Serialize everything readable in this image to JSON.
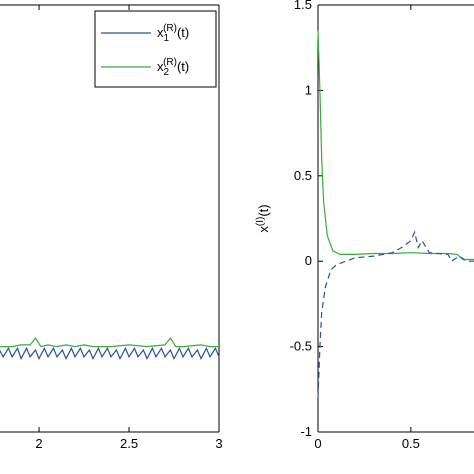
{
  "chart_data": [
    {
      "type": "line",
      "xlim": [
        1.783,
        3
      ],
      "ylim": [
        -1,
        1.5
      ],
      "xticks": [
        2,
        2.5,
        3
      ],
      "legend": "upper right",
      "series": [
        {
          "name": {
            "base": "x",
            "sub": "1",
            "sup": "(R)",
            "tail": "(t)"
          },
          "color": "#2b4fa0",
          "style": "solid",
          "x": [
            1.78,
            1.8,
            1.83,
            1.85,
            1.88,
            1.9,
            1.93,
            1.95,
            1.98,
            2.0,
            2.03,
            2.05,
            2.08,
            2.1,
            2.13,
            2.15,
            2.18,
            2.2,
            2.23,
            2.25,
            2.28,
            2.3,
            2.33,
            2.35,
            2.38,
            2.4,
            2.43,
            2.45,
            2.48,
            2.5,
            2.53,
            2.55,
            2.58,
            2.6,
            2.63,
            2.65,
            2.68,
            2.7,
            2.73,
            2.75,
            2.78,
            2.8,
            2.83,
            2.85,
            2.88,
            2.9,
            2.93,
            2.95,
            2.98,
            3.0
          ],
          "values": [
            -0.52,
            -0.56,
            -0.51,
            -0.56,
            -0.51,
            -0.57,
            -0.51,
            -0.56,
            -0.52,
            -0.57,
            -0.51,
            -0.56,
            -0.51,
            -0.56,
            -0.52,
            -0.57,
            -0.51,
            -0.56,
            -0.51,
            -0.56,
            -0.52,
            -0.57,
            -0.51,
            -0.56,
            -0.51,
            -0.56,
            -0.52,
            -0.57,
            -0.51,
            -0.56,
            -0.51,
            -0.56,
            -0.52,
            -0.57,
            -0.51,
            -0.56,
            -0.51,
            -0.56,
            -0.52,
            -0.57,
            -0.51,
            -0.56,
            -0.51,
            -0.56,
            -0.52,
            -0.57,
            -0.51,
            -0.56,
            -0.51,
            -0.56
          ]
        },
        {
          "name": {
            "base": "x",
            "sub": "2",
            "sup": "(R)",
            "tail": "(t)"
          },
          "color": "#3daa3d",
          "style": "solid",
          "x": [
            1.78,
            1.85,
            1.9,
            1.95,
            1.98,
            2.01,
            2.05,
            2.1,
            2.15,
            2.2,
            2.25,
            2.3,
            2.4,
            2.5,
            2.6,
            2.7,
            2.73,
            2.76,
            2.8,
            2.9,
            2.95,
            3.0
          ],
          "values": [
            -0.5,
            -0.5,
            -0.49,
            -0.49,
            -0.45,
            -0.5,
            -0.49,
            -0.5,
            -0.49,
            -0.5,
            -0.49,
            -0.5,
            -0.5,
            -0.49,
            -0.5,
            -0.49,
            -0.45,
            -0.5,
            -0.5,
            -0.49,
            -0.5,
            -0.5
          ]
        }
      ]
    },
    {
      "type": "line",
      "ylabel": {
        "base": "x",
        "sup": "(I)",
        "tail": "(t)"
      },
      "xlim": [
        0,
        0.84
      ],
      "ylim": [
        -1,
        1.5
      ],
      "xticks": [
        0,
        0.5
      ],
      "yticks": [
        -1,
        -0.5,
        0,
        0.5,
        1,
        1.5
      ],
      "series": [
        {
          "color": "#3daa3d",
          "style": "solid",
          "x": [
            0,
            0.01,
            0.02,
            0.03,
            0.05,
            0.08,
            0.12,
            0.2,
            0.3,
            0.4,
            0.5,
            0.6,
            0.7,
            0.75,
            0.78,
            0.84
          ],
          "values": [
            1.35,
            1.0,
            0.6,
            0.35,
            0.15,
            0.06,
            0.04,
            0.04,
            0.045,
            0.045,
            0.05,
            0.045,
            0.045,
            0.04,
            0.01,
            0.01
          ]
        },
        {
          "color": "#2b4fa0",
          "style": "dashed",
          "x": [
            0,
            0.01,
            0.02,
            0.04,
            0.07,
            0.1,
            0.15,
            0.2,
            0.3,
            0.4,
            0.45,
            0.5,
            0.52,
            0.54,
            0.56,
            0.6,
            0.7,
            0.72,
            0.76,
            0.8,
            0.84
          ],
          "values": [
            -0.8,
            -0.5,
            -0.3,
            -0.15,
            -0.05,
            -0.02,
            0.0,
            0.02,
            0.03,
            0.05,
            0.08,
            0.12,
            0.17,
            0.08,
            0.12,
            0.05,
            0.04,
            0.0,
            0.03,
            0.0,
            0.0
          ]
        }
      ]
    }
  ]
}
